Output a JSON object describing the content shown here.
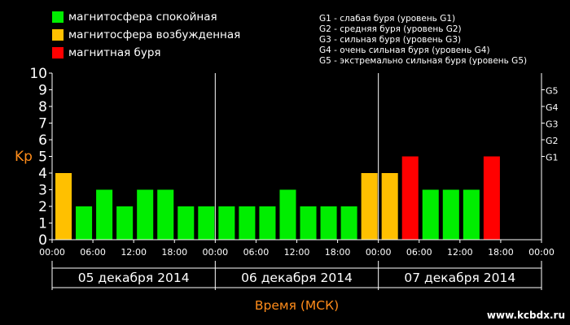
{
  "legend": [
    {
      "label": "магнитосфера спокойная",
      "color": "#00ee00"
    },
    {
      "label": "магнитосфера возбужденная",
      "color": "#ffc000"
    },
    {
      "label": "магнитная буря",
      "color": "#ff0000"
    }
  ],
  "storm_legend": [
    "G1 - слабая буря (уровень G1)",
    "G2 - средняя буря (уровень G2)",
    "G3 - сильная буря (уровень G3)",
    "G4 - очень сильная буря (уровень G4)",
    "G5 - экстремально сильная буря (уровень G5)"
  ],
  "watermark": "www.kcbdx.ru",
  "chart_data": {
    "type": "bar",
    "ylabel": "Kp",
    "xlabel": "Время (МСК)",
    "ylim": [
      0,
      10
    ],
    "yticks": [
      "0",
      "1",
      "2",
      "3",
      "4",
      "5",
      "6",
      "7",
      "8",
      "9",
      "10"
    ],
    "g_levels": [
      {
        "label": "G1",
        "value": 5
      },
      {
        "label": "G2",
        "value": 6
      },
      {
        "label": "G3",
        "value": 7
      },
      {
        "label": "G4",
        "value": 8
      },
      {
        "label": "G5",
        "value": 9
      }
    ],
    "xtick_labels": [
      "00:00",
      "06:00",
      "12:00",
      "18:00",
      "00:00",
      "06:00",
      "12:00",
      "18:00",
      "00:00",
      "06:00",
      "12:00",
      "18:00",
      "00:00"
    ],
    "days": [
      "05 декабря 2014",
      "06 декабря 2014",
      "07 декабря 2014"
    ],
    "series": [
      {
        "values": [
          4,
          2,
          3,
          2,
          3,
          3,
          2,
          2,
          2,
          2,
          2,
          3,
          2,
          2,
          2,
          4,
          4,
          5,
          3,
          3,
          3,
          5
        ]
      }
    ],
    "colors": {
      "quiet": "#00ee00",
      "active": "#ffc000",
      "storm": "#ff0000"
    },
    "axis_color": "#ffffff",
    "label_color": "#ff8c1a"
  }
}
